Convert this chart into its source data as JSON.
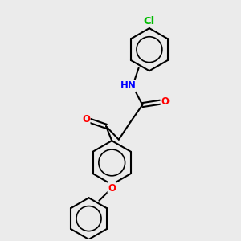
{
  "bg_color": "#ebebeb",
  "bond_color": "#000000",
  "bond_width": 1.5,
  "atom_colors": {
    "O": "#ff0000",
    "N": "#0000ff",
    "Cl": "#00bb00",
    "C": "#000000"
  },
  "font_size": 8.5,
  "figsize": [
    3.0,
    3.0
  ],
  "dpi": 100
}
